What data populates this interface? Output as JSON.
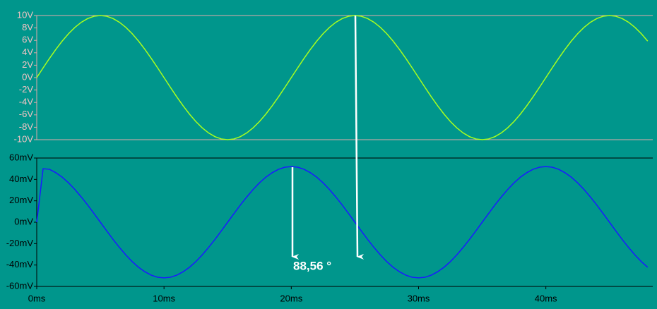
{
  "chart_data": [
    {
      "type": "line",
      "x": [
        0,
        0.5,
        1,
        1.5,
        2,
        2.5,
        3,
        3.5,
        4,
        4.5,
        5,
        5.5,
        6,
        6.5,
        7,
        7.5,
        8,
        8.5,
        9,
        9.5,
        10,
        10.5,
        11,
        11.5,
        12,
        12.5,
        13,
        13.5,
        14,
        14.5,
        15,
        15.5,
        16,
        16.5,
        17,
        17.5,
        18,
        18.5,
        19,
        19.5,
        20,
        20.5,
        21,
        21.5,
        22,
        22.5,
        23,
        23.5,
        24,
        24.5,
        25,
        25.5,
        26,
        26.5,
        27,
        27.5,
        28,
        28.5,
        29,
        29.5,
        30,
        30.5,
        31,
        31.5,
        32,
        32.5,
        33,
        33.5,
        34,
        34.5,
        35,
        35.5,
        36,
        36.5,
        37,
        37.5,
        38,
        38.5,
        39,
        39.5,
        40,
        40.5,
        41,
        41.5,
        42,
        42.5,
        43,
        43.5,
        44,
        44.5,
        45,
        45.5,
        46,
        46.5,
        47,
        47.5,
        48
      ],
      "series": [
        {
          "color": "#a8ff1e",
          "values": [
            0,
            1.56,
            3.09,
            4.54,
            5.88,
            7.07,
            8.09,
            8.91,
            9.51,
            9.88,
            10,
            9.88,
            9.51,
            8.91,
            8.09,
            7.07,
            5.88,
            4.54,
            3.09,
            1.56,
            0,
            -1.56,
            -3.09,
            -4.54,
            -5.88,
            -7.07,
            -8.09,
            -8.91,
            -9.51,
            -9.88,
            -10,
            -9.88,
            -9.51,
            -8.91,
            -8.09,
            -7.07,
            -5.88,
            -4.54,
            -3.09,
            -1.56,
            0,
            1.56,
            3.09,
            4.54,
            5.88,
            7.07,
            8.09,
            8.91,
            9.51,
            9.88,
            10,
            9.88,
            9.51,
            8.91,
            8.09,
            7.07,
            5.88,
            4.54,
            3.09,
            1.56,
            0,
            -1.56,
            -3.09,
            -4.54,
            -5.88,
            -7.07,
            -8.09,
            -8.91,
            -9.51,
            -9.88,
            -10,
            -9.88,
            -9.51,
            -8.91,
            -8.09,
            -7.07,
            -5.88,
            -4.54,
            -3.09,
            -1.56,
            0,
            1.56,
            3.09,
            4.54,
            5.88,
            7.07,
            8.09,
            8.91,
            9.51,
            9.88,
            10,
            9.88,
            9.51,
            8.91,
            8.09,
            7.07,
            5.88
          ]
        }
      ],
      "xlim": [
        0,
        48.4
      ],
      "ylim": [
        -10,
        10
      ],
      "yticks": [
        {
          "value": 10,
          "label": "10V"
        },
        {
          "value": 8,
          "label": "8V"
        },
        {
          "value": 6,
          "label": "6V"
        },
        {
          "value": 4,
          "label": "4V"
        },
        {
          "value": 2,
          "label": "2V"
        },
        {
          "value": 0,
          "label": "0V"
        },
        {
          "value": -2,
          "label": "-2V"
        },
        {
          "value": -4,
          "label": "-4V"
        },
        {
          "value": -6,
          "label": "-6V"
        },
        {
          "value": -8,
          "label": "-8V"
        },
        {
          "value": -10,
          "label": "-10V"
        }
      ],
      "tick_color": "#f4c4c4",
      "frame_color": "#e0aaaa"
    },
    {
      "type": "line",
      "x": [
        0,
        0.5,
        1,
        1.5,
        2,
        2.5,
        3,
        3.5,
        4,
        4.5,
        5,
        5.5,
        6,
        6.5,
        7,
        7.5,
        8,
        8.5,
        9,
        9.5,
        10,
        10.5,
        11,
        11.5,
        12,
        12.5,
        13,
        13.5,
        14,
        14.5,
        15,
        15.5,
        16,
        16.5,
        17,
        17.5,
        18,
        18.5,
        19,
        19.5,
        20,
        20.5,
        21,
        21.5,
        22,
        22.5,
        23,
        23.5,
        24,
        24.5,
        25,
        25.5,
        26,
        26.5,
        27,
        27.5,
        28,
        28.5,
        29,
        29.5,
        30,
        30.5,
        31,
        31.5,
        32,
        32.5,
        33,
        33.5,
        34,
        34.5,
        35,
        35.5,
        36,
        36.5,
        37,
        37.5,
        38,
        38.5,
        39,
        39.5,
        40,
        40.5,
        41,
        41.5,
        42,
        42.5,
        43,
        43.5,
        44,
        44.5,
        45,
        45.5,
        46,
        46.5,
        47,
        47.5,
        48
      ],
      "series": [
        {
          "color": "#1a1aff",
          "values": [
            0,
            50,
            49.5,
            46.3,
            42.1,
            36.8,
            30.6,
            23.6,
            16.1,
            8.1,
            0,
            -8.1,
            -16.1,
            -23.6,
            -30.6,
            -36.8,
            -42.1,
            -46.3,
            -49.5,
            -51.4,
            -52,
            -51.4,
            -49.5,
            -46.3,
            -42.1,
            -36.8,
            -30.6,
            -23.6,
            -16.1,
            -8.1,
            0,
            8.1,
            16.1,
            23.6,
            30.6,
            36.8,
            42.1,
            46.3,
            49.5,
            51.4,
            52,
            51.4,
            49.5,
            46.3,
            42.1,
            36.8,
            30.6,
            23.6,
            16.1,
            8.1,
            0,
            -8.1,
            -16.1,
            -23.6,
            -30.6,
            -36.8,
            -42.1,
            -46.3,
            -49.5,
            -51.4,
            -52,
            -51.4,
            -49.5,
            -46.3,
            -42.1,
            -36.8,
            -30.6,
            -23.6,
            -16.1,
            -8.1,
            0,
            8.1,
            16.1,
            23.6,
            30.6,
            36.8,
            42.1,
            46.3,
            49.5,
            51.4,
            52,
            51.4,
            49.5,
            46.3,
            42.1,
            36.8,
            30.6,
            23.6,
            16.1,
            8.1,
            0,
            -8.1,
            -16.1,
            -23.6,
            -30.6,
            -36.8,
            -42.1
          ]
        }
      ],
      "xlim": [
        0,
        48.4
      ],
      "xticks": [
        {
          "value": 0,
          "label": "0ms"
        },
        {
          "value": 10,
          "label": "10ms"
        },
        {
          "value": 20,
          "label": "20ms"
        },
        {
          "value": 30,
          "label": "30ms"
        },
        {
          "value": 40,
          "label": "40ms"
        }
      ],
      "ylim": [
        -60,
        60
      ],
      "yticks": [
        {
          "value": 60,
          "label": "60mV"
        },
        {
          "value": 40,
          "label": "40mV"
        },
        {
          "value": 20,
          "label": "20mV"
        },
        {
          "value": 0,
          "label": "0mV"
        },
        {
          "value": -20,
          "label": "-20mV"
        },
        {
          "value": -40,
          "label": "-40mV"
        },
        {
          "value": -60,
          "label": "-60mV"
        }
      ],
      "tick_color": "#000000",
      "frame_color": "#000000",
      "annotation": "88,56 °"
    }
  ]
}
